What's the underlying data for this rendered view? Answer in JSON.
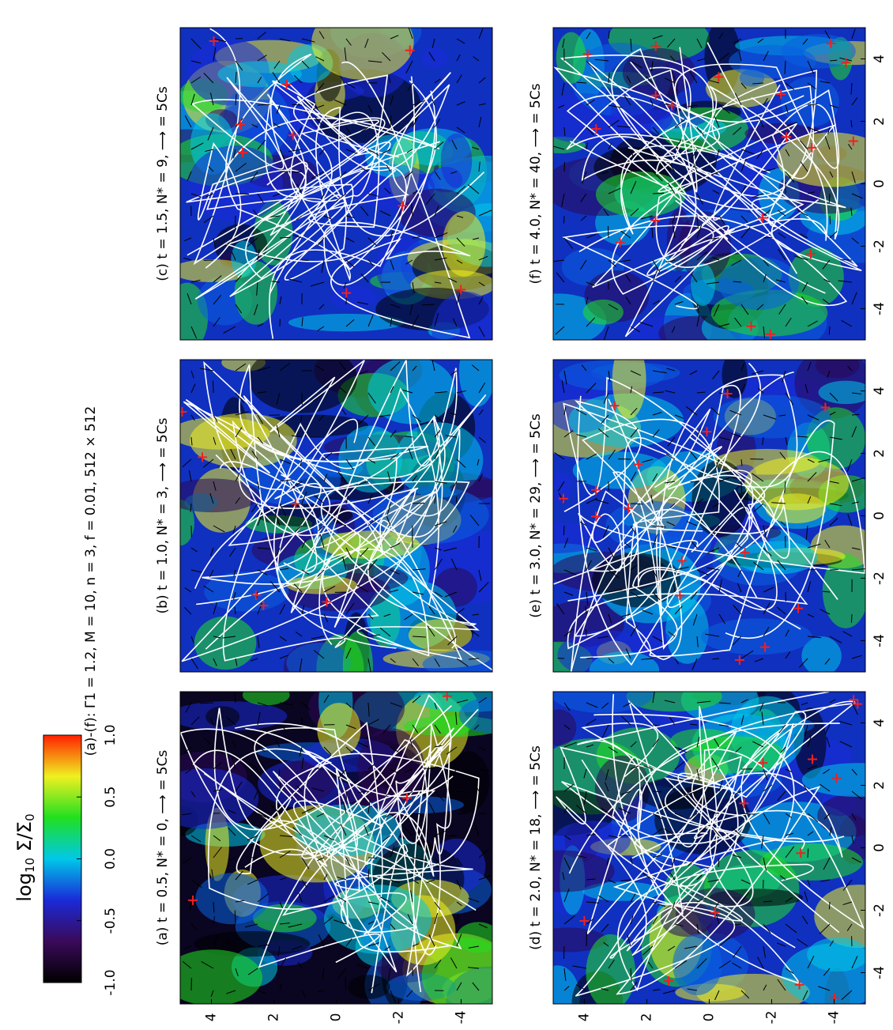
{
  "figure": {
    "title": "(a)-(f): Γ1 = 1.2, M = 10, n = 3, f = 0.01, 512 × 512",
    "colorbar": {
      "label_parts": [
        "log",
        "10",
        " Σ/Σ",
        "0"
      ],
      "lim": [
        -1.0,
        1.0
      ],
      "ticks": [
        {
          "value": -1.0,
          "label": "-1.0"
        },
        {
          "value": -0.5,
          "label": "-0.5"
        },
        {
          "value": 0.0,
          "label": "0.0"
        },
        {
          "value": 0.5,
          "label": "0.5"
        },
        {
          "value": 1.0,
          "label": "1.0"
        }
      ],
      "colors": [
        "#000000",
        "#3a0a5a",
        "#1a2ad8",
        "#00c8e8",
        "#20e020",
        "#f0f020",
        "#ff2000"
      ]
    },
    "axis": {
      "lim": [
        5,
        -5
      ],
      "ticks": [
        4,
        2,
        0,
        -2,
        -4
      ]
    },
    "panels": [
      {
        "label": "(a) t = 0.5, N* = 0, ⟶ = 5Cs"
      },
      {
        "label": "(b) t = 1.0, N* = 3, ⟶ = 5Cs"
      },
      {
        "label": "(c) t = 1.5, N* = 9, ⟶ = 5Cs"
      },
      {
        "label": "(d) t = 2.0, N* = 18, ⟶ = 5Cs"
      },
      {
        "label": "(e) t = 3.0, N* = 29, ⟶ = 5Cs"
      },
      {
        "label": "(f) t = 4.0, N* = 40, ⟶ = 5Cs"
      }
    ]
  }
}
